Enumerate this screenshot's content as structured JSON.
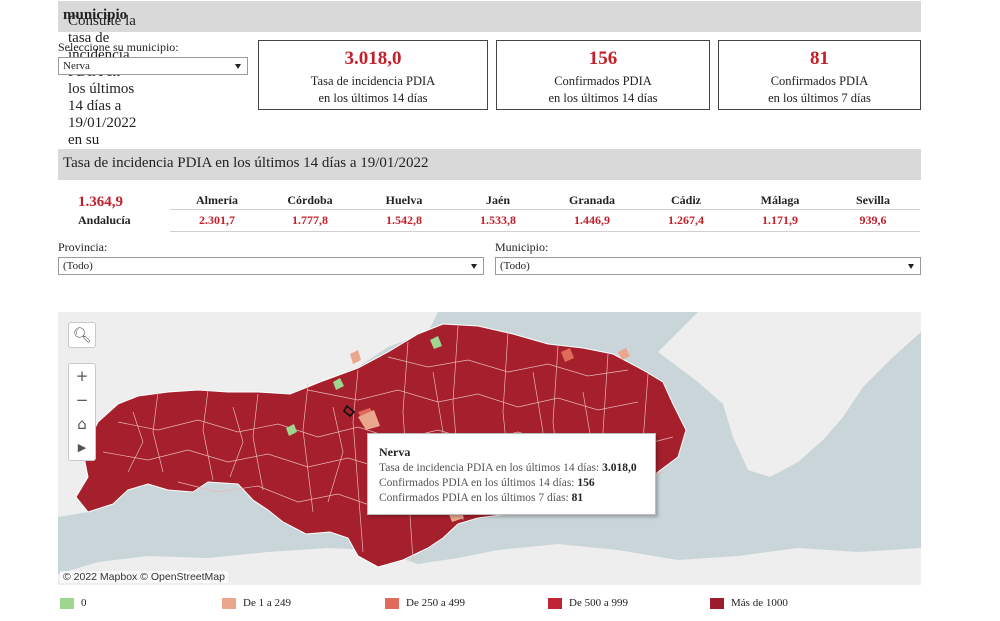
{
  "header": {
    "title_prefix": "Consulte la tasa de incidencia PDIA en los últimos 14 días a 19/01/2022 en su ",
    "title_bold": "municipio"
  },
  "municipio_select": {
    "label": "Seleccione su municipio:",
    "value": "Nerva"
  },
  "kpis": [
    {
      "value": "3.018,0",
      "line1": "Tasa de incidencia PDIA",
      "line2": "en los últimos 14 días"
    },
    {
      "value": "156",
      "line1": "Confirmados PDIA",
      "line2": "en los últimos 14 días"
    },
    {
      "value": "81",
      "line1": "Confirmados PDIA",
      "line2": "en los últimos 7 días"
    }
  ],
  "section2": {
    "title": "Tasa de incidencia PDIA en los últimos 14 días a 19/01/2022"
  },
  "andalucia": {
    "value": "1.364,9",
    "label": "Andalucía"
  },
  "provinces": [
    {
      "name": "Almería",
      "value": "2.301,7"
    },
    {
      "name": "Córdoba",
      "value": "1.777,8"
    },
    {
      "name": "Huelva",
      "value": "1.542,8"
    },
    {
      "name": "Jaén",
      "value": "1.533,8"
    },
    {
      "name": "Granada",
      "value": "1.446,9"
    },
    {
      "name": "Cádiz",
      "value": "1.267,4"
    },
    {
      "name": "Málaga",
      "value": "1.171,9"
    },
    {
      "name": "Sevilla",
      "value": "939,6"
    }
  ],
  "filters": {
    "provincia": {
      "label": "Provincia:",
      "value": "(Todo)"
    },
    "municipio": {
      "label": "Municipio:",
      "value": "(Todo)"
    }
  },
  "map": {
    "attribution": "© 2022 Mapbox  © OpenStreetMap",
    "controls": [
      "search-icon",
      "zoom-in-icon",
      "zoom-out-icon",
      "home-icon",
      "play-icon"
    ],
    "tooltip": {
      "title": "Nerva",
      "r1_label": "Tasa de incidencia PDIA en los últimos 14 días: ",
      "r1_value": "3.018,0",
      "r2_label": "Confirmados PDIA en los últimos 14 días: ",
      "r2_value": "156",
      "r3_label": "Confirmados PDIA en los últimos 7 días: ",
      "r3_value": "81"
    },
    "colors": {
      "sea": "#c9d5d8",
      "land": "#eeeeee",
      "region": "#a51f2d"
    }
  },
  "legend": [
    {
      "label": "0",
      "color": "#9ed58f"
    },
    {
      "label": "De 1 a 249",
      "color": "#eba78e"
    },
    {
      "label": "De 250 a 499",
      "color": "#e06b5b"
    },
    {
      "label": "De 500 a 999",
      "color": "#bf2535"
    },
    {
      "label": "Más de 1000",
      "color": "#9c1b2c"
    }
  ]
}
